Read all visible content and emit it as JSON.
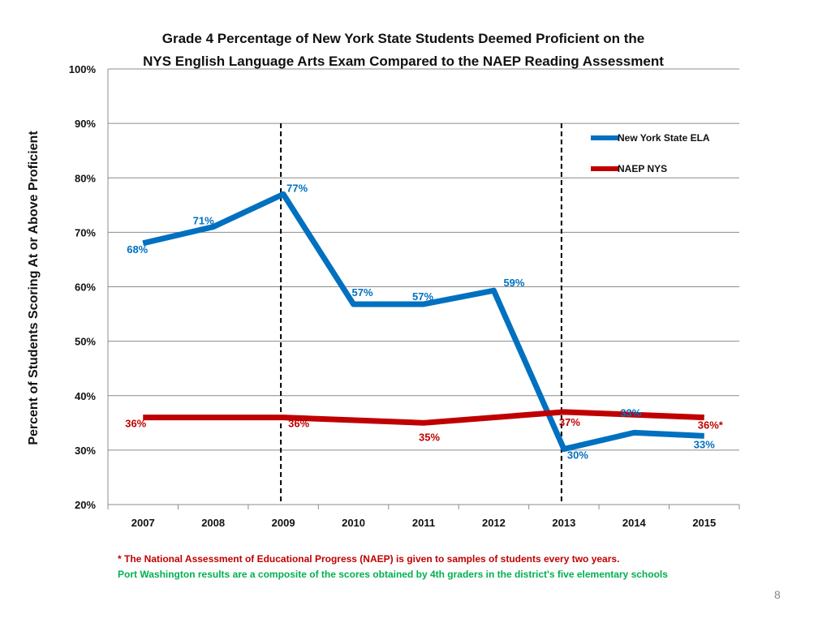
{
  "chart_data": {
    "type": "line",
    "title_line1": "Grade 4 Percentage of New York State Students Deemed Proficient on the",
    "title_line2": "NYS English Language Arts Exam Compared to the NAEP Reading Assessment",
    "ylabel": "Percent of Students Scoring At or Above Proficient",
    "x": [
      "2007",
      "2008",
      "2009",
      "2010",
      "2011",
      "2012",
      "2013",
      "2014",
      "2015"
    ],
    "ylim": [
      20,
      100
    ],
    "yticks": [
      "20%",
      "30%",
      "40%",
      "50%",
      "60%",
      "70%",
      "80%",
      "90%",
      "100%"
    ],
    "grid": true,
    "legend_position": "top-right",
    "reference_lines_at": [
      "2009",
      "2013"
    ],
    "series": [
      {
        "name": "New York State ELA",
        "color": "#0070c0",
        "values": [
          68,
          71,
          77,
          56.8,
          56.8,
          59.3,
          30.2,
          33.2,
          32.6
        ],
        "labels": [
          "68%",
          "71%",
          "77%",
          "57%",
          "57%",
          "59%",
          "30%",
          "33%",
          "33%"
        ]
      },
      {
        "name": "NAEP NYS",
        "color": "#c00000",
        "values": [
          36,
          null,
          36,
          null,
          35,
          null,
          37,
          null,
          36
        ],
        "labels": [
          "36%",
          "",
          "36%",
          "",
          "35%",
          "",
          "37%",
          "",
          "36%*"
        ]
      }
    ]
  },
  "footnote1": "* The National Assessment of Educational Progress (NAEP) is given to samples of students every two years.",
  "footnote2": "Port Washington results are a composite of the scores obtained by 4th graders in the district's five elementary schools",
  "page_number": "8"
}
